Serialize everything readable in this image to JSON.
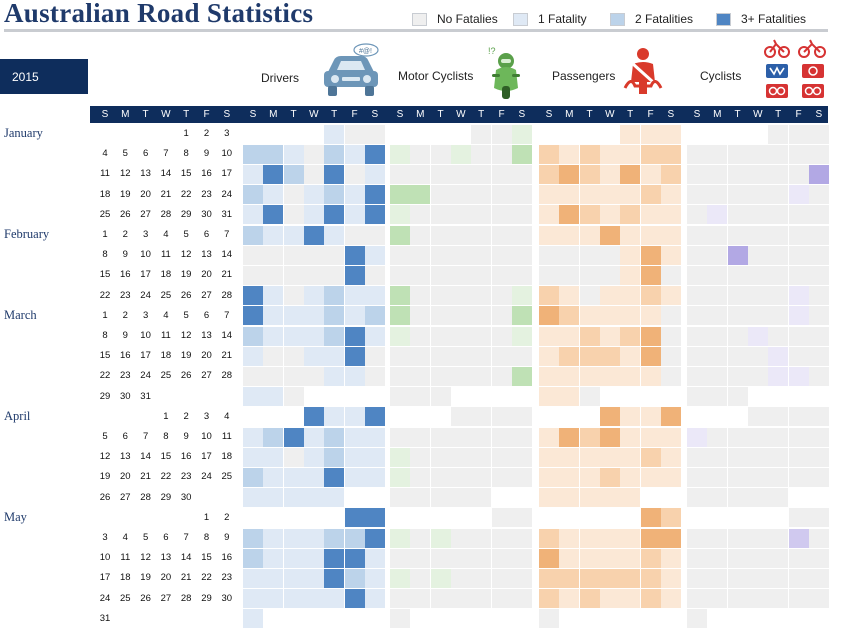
{
  "title": "Australian Road Statistics",
  "year": "2015",
  "legend": [
    {
      "label": "No Fatalies",
      "color": "#efefef"
    },
    {
      "label": "1 Fatality",
      "color": "#dfe9f5"
    },
    {
      "label": "2 Fatalities",
      "color": "#bcd3ea"
    },
    {
      "label": "3+ Fatalities",
      "color": "#4f85c3"
    }
  ],
  "weekday_letters": [
    "S",
    "M",
    "T",
    "W",
    "T",
    "F",
    "S"
  ],
  "categories": [
    {
      "name": "Drivers",
      "icon": "car-icon"
    },
    {
      "name": "Motor Cyclists",
      "icon": "motorcyclist-icon"
    },
    {
      "name": "Passengers",
      "icon": "seatbelt-icon"
    },
    {
      "name": "Cyclists",
      "icon": "bicycle-icons"
    }
  ],
  "months": [
    "January",
    "February",
    "March",
    "April",
    "May"
  ],
  "chart_data": {
    "type": "heatmap",
    "title": "Australian Road Statistics",
    "year": "2015",
    "x": [
      "S",
      "M",
      "T",
      "W",
      "T",
      "F",
      "S"
    ],
    "levels": [
      "No Fatalies",
      "1 Fatality",
      "2 Fatalities",
      "3+ Fatalities"
    ],
    "weeks": [
      {
        "month": "January",
        "days": [
          "",
          "",
          "",
          "",
          "1",
          "2",
          "3"
        ]
      },
      {
        "month": "",
        "days": [
          "4",
          "5",
          "6",
          "7",
          "8",
          "9",
          "10"
        ]
      },
      {
        "month": "",
        "days": [
          "11",
          "12",
          "13",
          "14",
          "15",
          "16",
          "17"
        ]
      },
      {
        "month": "",
        "days": [
          "18",
          "19",
          "20",
          "21",
          "22",
          "23",
          "24"
        ]
      },
      {
        "month": "",
        "days": [
          "25",
          "26",
          "27",
          "28",
          "29",
          "30",
          "31"
        ]
      },
      {
        "month": "February",
        "days": [
          "1",
          "2",
          "3",
          "4",
          "5",
          "6",
          "7"
        ]
      },
      {
        "month": "",
        "days": [
          "8",
          "9",
          "10",
          "11",
          "12",
          "13",
          "14"
        ]
      },
      {
        "month": "",
        "days": [
          "15",
          "16",
          "17",
          "18",
          "19",
          "20",
          "21"
        ]
      },
      {
        "month": "",
        "days": [
          "22",
          "23",
          "24",
          "25",
          "26",
          "27",
          "28"
        ]
      },
      {
        "month": "March",
        "days": [
          "1",
          "2",
          "3",
          "4",
          "5",
          "6",
          "7"
        ]
      },
      {
        "month": "",
        "days": [
          "8",
          "9",
          "10",
          "11",
          "12",
          "13",
          "14"
        ]
      },
      {
        "month": "",
        "days": [
          "15",
          "16",
          "17",
          "18",
          "19",
          "20",
          "21"
        ]
      },
      {
        "month": "",
        "days": [
          "22",
          "23",
          "24",
          "25",
          "26",
          "27",
          "28"
        ]
      },
      {
        "month": "",
        "days": [
          "29",
          "30",
          "31",
          "",
          "",
          "",
          ""
        ]
      },
      {
        "month": "April",
        "days": [
          "",
          "",
          "",
          "1",
          "2",
          "3",
          "4"
        ]
      },
      {
        "month": "",
        "days": [
          "5",
          "6",
          "7",
          "8",
          "9",
          "10",
          "11"
        ]
      },
      {
        "month": "",
        "days": [
          "12",
          "13",
          "14",
          "15",
          "16",
          "17",
          "18"
        ]
      },
      {
        "month": "",
        "days": [
          "19",
          "20",
          "21",
          "22",
          "23",
          "24",
          "25"
        ]
      },
      {
        "month": "",
        "days": [
          "26",
          "27",
          "28",
          "29",
          "30",
          "",
          ""
        ]
      },
      {
        "month": "May",
        "days": [
          "",
          "",
          "",
          "",
          "",
          "1",
          "2"
        ]
      },
      {
        "month": "",
        "days": [
          "3",
          "4",
          "5",
          "6",
          "7",
          "8",
          "9"
        ]
      },
      {
        "month": "",
        "days": [
          "10",
          "11",
          "12",
          "13",
          "14",
          "15",
          "16"
        ]
      },
      {
        "month": "",
        "days": [
          "17",
          "18",
          "19",
          "20",
          "21",
          "22",
          "23"
        ]
      },
      {
        "month": "",
        "days": [
          "24",
          "25",
          "26",
          "27",
          "28",
          "29",
          "30"
        ]
      },
      {
        "month": "",
        "days": [
          "31",
          "",
          "",
          "",
          "",
          "",
          ""
        ]
      }
    ],
    "series": [
      {
        "name": "Drivers",
        "palette": [
          "#efefef",
          "#dfe9f5",
          "#bcd3ea",
          "#4f85c3"
        ],
        "levels": [
          [
            -1,
            -1,
            -1,
            -1,
            1,
            0,
            0
          ],
          [
            2,
            2,
            1,
            0,
            2,
            1,
            3
          ],
          [
            1,
            3,
            2,
            0,
            3,
            0,
            1
          ],
          [
            2,
            1,
            0,
            1,
            2,
            1,
            3
          ],
          [
            1,
            3,
            0,
            1,
            3,
            1,
            3
          ],
          [
            2,
            1,
            1,
            3,
            1,
            0,
            0
          ],
          [
            0,
            0,
            0,
            0,
            0,
            3,
            1
          ],
          [
            0,
            0,
            0,
            0,
            0,
            3,
            0
          ],
          [
            3,
            1,
            0,
            1,
            2,
            1,
            1
          ],
          [
            3,
            1,
            1,
            1,
            2,
            1,
            2
          ],
          [
            2,
            1,
            1,
            1,
            2,
            3,
            1
          ],
          [
            1,
            0,
            0,
            1,
            1,
            3,
            0
          ],
          [
            0,
            0,
            0,
            0,
            1,
            1,
            0
          ],
          [
            1,
            1,
            0,
            -1,
            -1,
            -1,
            -1
          ],
          [
            -1,
            -1,
            -1,
            3,
            1,
            1,
            3
          ],
          [
            1,
            2,
            3,
            1,
            2,
            1,
            1
          ],
          [
            1,
            1,
            0,
            1,
            2,
            1,
            1
          ],
          [
            2,
            1,
            1,
            1,
            3,
            1,
            1
          ],
          [
            1,
            1,
            1,
            1,
            1,
            -1,
            -1
          ],
          [
            -1,
            -1,
            -1,
            -1,
            -1,
            3,
            3
          ],
          [
            2,
            1,
            1,
            1,
            2,
            2,
            3
          ],
          [
            2,
            1,
            1,
            1,
            3,
            3,
            1
          ],
          [
            1,
            1,
            1,
            1,
            3,
            2,
            1
          ],
          [
            1,
            1,
            1,
            1,
            1,
            3,
            1
          ],
          [
            1,
            -1,
            -1,
            -1,
            -1,
            -1,
            -1
          ]
        ]
      },
      {
        "name": "Motor Cyclists",
        "palette": [
          "#efefef",
          "#e4f2e0",
          "#bfe1b5",
          "#7cc06b"
        ],
        "levels": [
          [
            -1,
            -1,
            -1,
            -1,
            0,
            0,
            1
          ],
          [
            1,
            0,
            0,
            1,
            0,
            0,
            2
          ],
          [
            0,
            0,
            0,
            0,
            0,
            0,
            0
          ],
          [
            2,
            2,
            0,
            0,
            0,
            0,
            0
          ],
          [
            1,
            0,
            0,
            0,
            0,
            0,
            0
          ],
          [
            2,
            0,
            0,
            0,
            0,
            0,
            0
          ],
          [
            0,
            0,
            0,
            0,
            0,
            0,
            0
          ],
          [
            0,
            0,
            0,
            0,
            0,
            0,
            0
          ],
          [
            2,
            0,
            0,
            0,
            0,
            0,
            1
          ],
          [
            2,
            0,
            0,
            0,
            0,
            0,
            2
          ],
          [
            1,
            0,
            0,
            0,
            0,
            0,
            1
          ],
          [
            0,
            0,
            0,
            0,
            0,
            0,
            0
          ],
          [
            0,
            0,
            0,
            0,
            0,
            0,
            2
          ],
          [
            0,
            0,
            0,
            -1,
            -1,
            -1,
            -1
          ],
          [
            -1,
            -1,
            -1,
            0,
            0,
            0,
            0
          ],
          [
            0,
            0,
            0,
            0,
            0,
            0,
            0
          ],
          [
            1,
            0,
            0,
            0,
            0,
            0,
            0
          ],
          [
            1,
            0,
            0,
            0,
            0,
            0,
            0
          ],
          [
            0,
            0,
            0,
            0,
            0,
            -1,
            -1
          ],
          [
            -1,
            -1,
            -1,
            -1,
            -1,
            0,
            0
          ],
          [
            1,
            0,
            1,
            0,
            0,
            0,
            0
          ],
          [
            0,
            0,
            0,
            0,
            0,
            0,
            0
          ],
          [
            1,
            0,
            1,
            0,
            0,
            0,
            0
          ],
          [
            0,
            0,
            0,
            0,
            0,
            0,
            0
          ],
          [
            0,
            -1,
            -1,
            -1,
            -1,
            -1,
            -1
          ]
        ]
      },
      {
        "name": "Passengers",
        "palette": [
          "#efefef",
          "#fbe8d6",
          "#f8d2ad",
          "#f0b278"
        ],
        "levels": [
          [
            -1,
            -1,
            -1,
            -1,
            1,
            1,
            1
          ],
          [
            2,
            1,
            2,
            1,
            1,
            2,
            2
          ],
          [
            2,
            3,
            2,
            1,
            3,
            1,
            2
          ],
          [
            1,
            1,
            1,
            1,
            1,
            2,
            1
          ],
          [
            1,
            3,
            2,
            1,
            2,
            1,
            1
          ],
          [
            1,
            1,
            1,
            3,
            1,
            1,
            1
          ],
          [
            0,
            0,
            0,
            0,
            1,
            3,
            1
          ],
          [
            0,
            0,
            0,
            0,
            1,
            3,
            0
          ],
          [
            2,
            1,
            0,
            1,
            1,
            2,
            1
          ],
          [
            3,
            2,
            1,
            1,
            1,
            1,
            0
          ],
          [
            1,
            1,
            2,
            1,
            2,
            3,
            0
          ],
          [
            1,
            2,
            2,
            2,
            1,
            3,
            0
          ],
          [
            1,
            1,
            1,
            1,
            1,
            1,
            0
          ],
          [
            1,
            1,
            0,
            -1,
            -1,
            -1,
            -1
          ],
          [
            -1,
            -1,
            -1,
            3,
            1,
            1,
            3
          ],
          [
            1,
            3,
            2,
            3,
            1,
            1,
            1
          ],
          [
            1,
            1,
            1,
            1,
            1,
            2,
            1
          ],
          [
            1,
            1,
            1,
            2,
            1,
            1,
            1
          ],
          [
            1,
            1,
            1,
            1,
            1,
            -1,
            -1
          ],
          [
            -1,
            -1,
            -1,
            -1,
            -1,
            3,
            2
          ],
          [
            2,
            1,
            1,
            1,
            1,
            3,
            3
          ],
          [
            3,
            1,
            1,
            1,
            1,
            2,
            1
          ],
          [
            2,
            2,
            2,
            2,
            2,
            2,
            1
          ],
          [
            2,
            1,
            2,
            1,
            1,
            2,
            1
          ],
          [
            0,
            -1,
            -1,
            -1,
            -1,
            -1,
            -1
          ]
        ]
      },
      {
        "name": "Cyclists",
        "palette": [
          "#efefef",
          "#ebe8f8",
          "#d0c9ef",
          "#b2a8e4"
        ],
        "levels": [
          [
            -1,
            -1,
            -1,
            -1,
            0,
            0,
            0
          ],
          [
            0,
            0,
            0,
            0,
            0,
            0,
            0
          ],
          [
            0,
            0,
            0,
            0,
            0,
            0,
            3
          ],
          [
            0,
            0,
            0,
            0,
            0,
            1,
            0
          ],
          [
            0,
            1,
            0,
            0,
            0,
            0,
            0
          ],
          [
            0,
            0,
            0,
            0,
            0,
            0,
            0
          ],
          [
            0,
            0,
            3,
            0,
            0,
            0,
            0
          ],
          [
            0,
            0,
            0,
            0,
            0,
            0,
            0
          ],
          [
            0,
            0,
            0,
            0,
            0,
            1,
            0
          ],
          [
            0,
            0,
            0,
            0,
            0,
            1,
            0
          ],
          [
            0,
            0,
            0,
            1,
            0,
            0,
            0
          ],
          [
            0,
            0,
            0,
            0,
            1,
            0,
            0
          ],
          [
            0,
            0,
            0,
            0,
            1,
            1,
            0
          ],
          [
            0,
            0,
            0,
            -1,
            -1,
            -1,
            -1
          ],
          [
            -1,
            -1,
            -1,
            0,
            0,
            0,
            0
          ],
          [
            1,
            0,
            0,
            0,
            0,
            0,
            0
          ],
          [
            0,
            0,
            0,
            0,
            0,
            0,
            0
          ],
          [
            0,
            0,
            0,
            0,
            0,
            0,
            0
          ],
          [
            0,
            0,
            0,
            0,
            0,
            -1,
            -1
          ],
          [
            -1,
            -1,
            -1,
            -1,
            -1,
            0,
            0
          ],
          [
            0,
            0,
            0,
            0,
            0,
            2,
            0
          ],
          [
            0,
            0,
            0,
            0,
            0,
            0,
            0
          ],
          [
            0,
            0,
            0,
            0,
            0,
            0,
            0
          ],
          [
            0,
            0,
            0,
            0,
            0,
            0,
            0
          ],
          [
            0,
            -1,
            -1,
            -1,
            -1,
            -1,
            -1
          ]
        ]
      }
    ]
  }
}
